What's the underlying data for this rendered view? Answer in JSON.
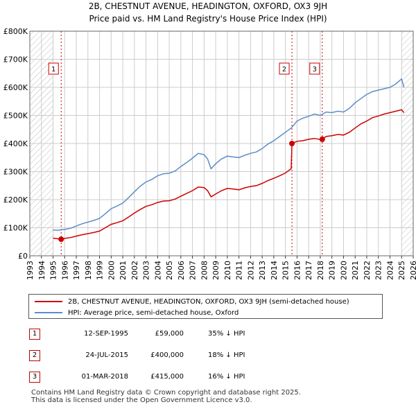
{
  "title": "2B, CHESTNUT AVENUE, HEADINGTON, OXFORD, OX3 9JH",
  "subtitle": "Price paid vs. HM Land Registry's House Price Index (HPI)",
  "colors": {
    "property": "#cc0000",
    "hpi": "#5b8cc8",
    "marker": "#cc0000",
    "grid": "#cccccc",
    "hatch": "#bbbbbb"
  },
  "legend": {
    "property": "2B, CHESTNUT AVENUE, HEADINGTON, OXFORD, OX3 9JH (semi-detached house)",
    "hpi": "HPI: Average price, semi-detached house, Oxford"
  },
  "sales": [
    {
      "num": "1",
      "date": "12-SEP-1995",
      "price": "£59,000",
      "hpi": "35% ↓ HPI"
    },
    {
      "num": "2",
      "date": "24-JUL-2015",
      "price": "£400,000",
      "hpi": "18% ↓ HPI"
    },
    {
      "num": "3",
      "date": "01-MAR-2018",
      "price": "£415,000",
      "hpi": "16% ↓ HPI"
    }
  ],
  "footer": {
    "line1": "Contains HM Land Registry data © Crown copyright and database right 2025.",
    "line2": "This data is licensed under the Open Government Licence v3.0."
  },
  "chart_data": {
    "type": "line",
    "ylim": [
      0,
      800000
    ],
    "xlim": [
      1993,
      2026
    ],
    "yticks": [
      0,
      100000,
      200000,
      300000,
      400000,
      500000,
      600000,
      700000,
      800000
    ],
    "ytick_labels": [
      "£0",
      "£100K",
      "£200K",
      "£300K",
      "£400K",
      "£500K",
      "£600K",
      "£700K",
      "£800K"
    ],
    "xticks": [
      1993,
      1994,
      1995,
      1996,
      1997,
      1998,
      1999,
      2000,
      2001,
      2002,
      2003,
      2004,
      2005,
      2006,
      2007,
      2008,
      2009,
      2010,
      2011,
      2012,
      2013,
      2014,
      2015,
      2016,
      2017,
      2018,
      2019,
      2020,
      2021,
      2022,
      2023,
      2024,
      2025,
      2026
    ],
    "hatched_ranges": [
      [
        1993,
        1995
      ],
      [
        2025,
        2026
      ]
    ],
    "grid": true,
    "series": [
      {
        "name": "2B, CHESTNUT AVENUE, HEADINGTON, OXFORD, OX3 9JH (semi-detached house)",
        "x": [
          1995.0,
          1995.7,
          1996.0,
          1996.5,
          1997.0,
          1997.5,
          1998.0,
          1998.5,
          1999.0,
          1999.5,
          2000.0,
          2000.5,
          2001.0,
          2001.5,
          2002.0,
          2002.5,
          2003.0,
          2003.5,
          2004.0,
          2004.5,
          2005.0,
          2005.5,
          2006.0,
          2006.5,
          2007.0,
          2007.5,
          2008.0,
          2008.3,
          2008.6,
          2009.0,
          2009.5,
          2010.0,
          2010.5,
          2011.0,
          2011.5,
          2012.0,
          2012.5,
          2013.0,
          2013.5,
          2014.0,
          2014.5,
          2015.0,
          2015.5,
          2015.56,
          2016.0,
          2016.5,
          2017.0,
          2017.5,
          2018.0,
          2018.17,
          2018.5,
          2019.0,
          2019.5,
          2020.0,
          2020.5,
          2021.0,
          2021.5,
          2022.0,
          2022.5,
          2023.0,
          2023.5,
          2024.0,
          2024.5,
          2025.0,
          2025.2
        ],
        "values": [
          63000,
          59000,
          62000,
          65000,
          70000,
          75000,
          79000,
          83000,
          88000,
          100000,
          112000,
          118000,
          125000,
          138000,
          152000,
          165000,
          176000,
          182000,
          190000,
          195000,
          196000,
          202000,
          212000,
          222000,
          232000,
          245000,
          243000,
          232000,
          210000,
          220000,
          232000,
          240000,
          238000,
          235000,
          242000,
          247000,
          250000,
          258000,
          268000,
          276000,
          285000,
          295000,
          310000,
          400000,
          408000,
          410000,
          415000,
          418000,
          414000,
          415000,
          425000,
          428000,
          432000,
          430000,
          440000,
          455000,
          470000,
          480000,
          492000,
          498000,
          505000,
          510000,
          515000,
          520000,
          510000
        ]
      },
      {
        "name": "HPI: Average price, semi-detached house, Oxford",
        "x": [
          1995.0,
          1995.5,
          1996.0,
          1996.5,
          1997.0,
          1997.5,
          1998.0,
          1998.5,
          1999.0,
          1999.5,
          2000.0,
          2000.5,
          2001.0,
          2001.5,
          2002.0,
          2002.5,
          2003.0,
          2003.5,
          2004.0,
          2004.5,
          2005.0,
          2005.5,
          2006.0,
          2006.5,
          2007.0,
          2007.5,
          2008.0,
          2008.3,
          2008.6,
          2009.0,
          2009.5,
          2010.0,
          2010.5,
          2011.0,
          2011.5,
          2012.0,
          2012.5,
          2013.0,
          2013.5,
          2014.0,
          2014.5,
          2015.0,
          2015.5,
          2016.0,
          2016.5,
          2017.0,
          2017.5,
          2018.0,
          2018.5,
          2019.0,
          2019.5,
          2020.0,
          2020.5,
          2021.0,
          2021.5,
          2022.0,
          2022.5,
          2023.0,
          2023.5,
          2024.0,
          2024.5,
          2025.0,
          2025.2
        ],
        "values": [
          92000,
          91000,
          94000,
          98000,
          106000,
          114000,
          120000,
          126000,
          133000,
          150000,
          168000,
          177000,
          188000,
          207000,
          228000,
          248000,
          263000,
          272000,
          285000,
          292000,
          294000,
          302000,
          318000,
          332000,
          348000,
          365000,
          360000,
          345000,
          310000,
          328000,
          345000,
          355000,
          352000,
          350000,
          358000,
          365000,
          370000,
          382000,
          398000,
          410000,
          425000,
          440000,
          455000,
          480000,
          490000,
          497000,
          505000,
          500000,
          512000,
          510000,
          515000,
          512000,
          525000,
          545000,
          560000,
          575000,
          585000,
          590000,
          595000,
          600000,
          612000,
          630000,
          600000
        ]
      }
    ],
    "sale_markers": [
      {
        "label": "1",
        "x": 1995.7,
        "value": 59000
      },
      {
        "label": "2",
        "x": 2015.56,
        "value": 400000
      },
      {
        "label": "3",
        "x": 2018.17,
        "value": 415000
      }
    ]
  }
}
